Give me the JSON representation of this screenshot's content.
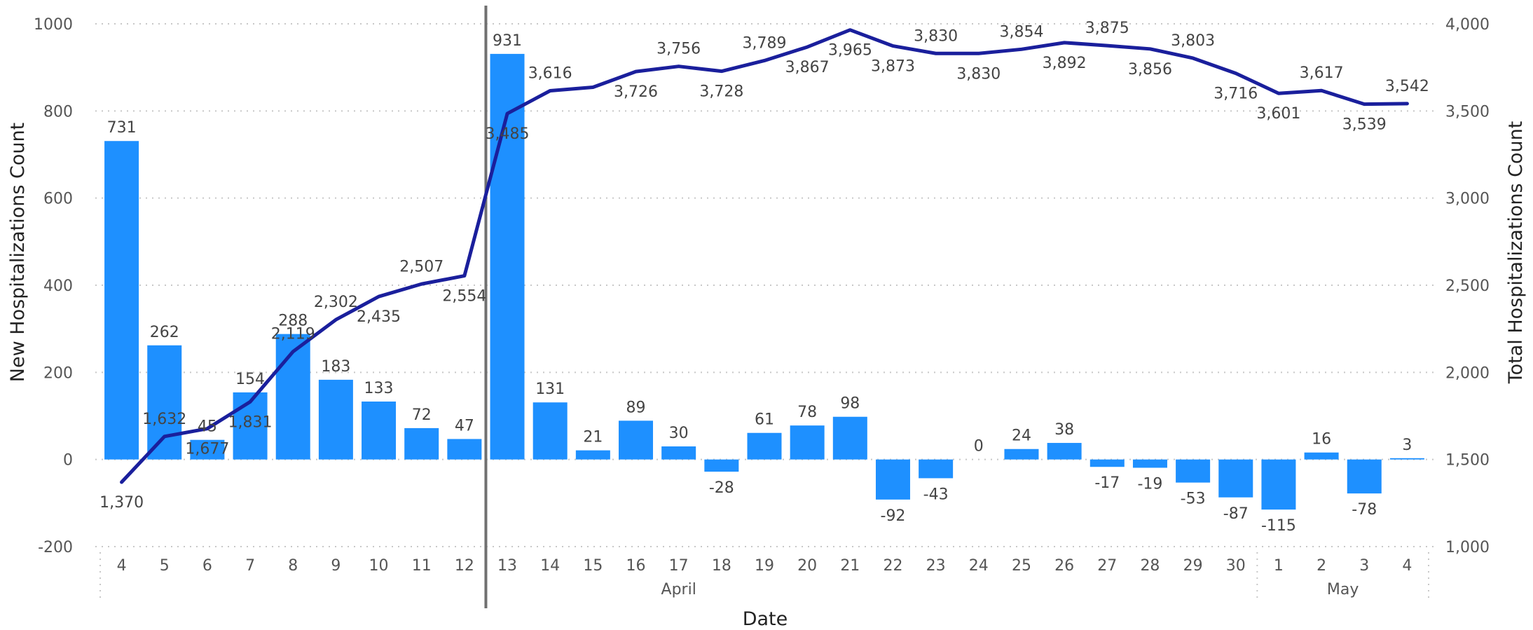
{
  "chart_data": {
    "type": "bar",
    "xlabel": "Date",
    "ylabel_left": "New Hospitalizations Count",
    "ylabel_right": "Total Hospitalizations Count",
    "ylim_left": [
      -200,
      1000
    ],
    "ylim_right": [
      1000,
      4000
    ],
    "yticks_left": [
      "1000",
      "800",
      "600",
      "400",
      "200",
      "0",
      "-200"
    ],
    "yticks_right": [
      "4,000",
      "3,500",
      "3,000",
      "2,500",
      "2,000",
      "1,500",
      "1,000"
    ],
    "grid": "horizontal dotted",
    "categories": [
      "4",
      "5",
      "6",
      "7",
      "8",
      "9",
      "10",
      "11",
      "12",
      "13",
      "14",
      "15",
      "16",
      "17",
      "18",
      "19",
      "20",
      "21",
      "22",
      "23",
      "24",
      "25",
      "26",
      "27",
      "28",
      "29",
      "30",
      "1",
      "2",
      "3",
      "4"
    ],
    "months": [
      {
        "label": "April",
        "first_index": 0,
        "last_index": 26
      },
      {
        "label": "May",
        "first_index": 27,
        "last_index": 30
      }
    ],
    "series": [
      {
        "name": "New Hospitalizations Count",
        "type": "bar",
        "axis": "left",
        "color": "#1E90FF",
        "values": [
          731,
          262,
          45,
          154,
          288,
          183,
          133,
          72,
          47,
          931,
          131,
          21,
          89,
          30,
          -28,
          61,
          78,
          98,
          -92,
          -43,
          0,
          24,
          38,
          -17,
          -19,
          -53,
          -87,
          -115,
          16,
          -78,
          3
        ],
        "labels": [
          "731",
          "262",
          "45",
          "154",
          "288",
          "183",
          "133",
          "72",
          "47",
          "931",
          "131",
          "21",
          "89",
          "30",
          "-28",
          "61",
          "78",
          "98",
          "-92",
          "-43",
          "0",
          "24",
          "38",
          "-17",
          "-19",
          "-53",
          "-87",
          "-115",
          "16",
          "-78",
          "3"
        ]
      },
      {
        "name": "Total Hospitalizations Count",
        "type": "line",
        "axis": "right",
        "color": "#1A1F9C",
        "values": [
          1370,
          1632,
          1677,
          1831,
          2119,
          2302,
          2435,
          2507,
          2554,
          3485,
          3616,
          3636,
          3726,
          3756,
          3728,
          3789,
          3867,
          3965,
          3873,
          3830,
          3830,
          3854,
          3892,
          3875,
          3856,
          3803,
          3716,
          3601,
          3617,
          3539,
          3542
        ],
        "labels": [
          "1,370",
          "1,632",
          "1,677",
          "1,831",
          "2,119",
          "2,302",
          "2,435",
          "2,507",
          "2,554",
          "3,485",
          "3,616",
          "",
          "3,726",
          "3,756",
          "3,728",
          "3,789",
          "3,867",
          "3,965",
          "3,873",
          "3,830",
          "3,830",
          "3,854",
          "3,892",
          "3,875",
          "3,856",
          "3,803",
          "3,716",
          "3,601",
          "3,617",
          "3,539",
          "3,542"
        ],
        "label_position": [
          "below",
          "above",
          "below",
          "below",
          "above",
          "above",
          "below",
          "above",
          "below",
          "below",
          "above",
          "above",
          "below",
          "above",
          "below",
          "above",
          "below",
          "below",
          "below",
          "above",
          "below",
          "above",
          "below",
          "above",
          "below",
          "above",
          "below",
          "below",
          "above",
          "below",
          "above"
        ]
      }
    ],
    "annotation": {
      "type": "vertical-line",
      "between_index": [
        8,
        9
      ],
      "color": "#707070"
    }
  }
}
